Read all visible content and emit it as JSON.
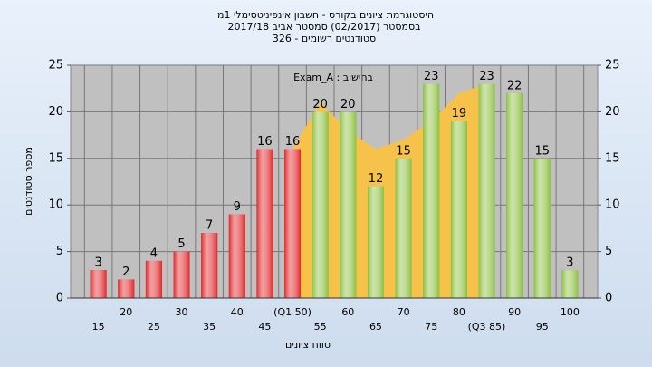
{
  "chart_data": {
    "type": "bar",
    "title": "היסטוגרמת ציונים בקורס - חשבון אינפיניטסימלי 1מ'",
    "subtitle": "בסמסטר (02/2017) סמסטר אביב 2017/18",
    "subtitle2": "סטודנטים רשומים - 326",
    "annotation": "בחישוב : Exam_A",
    "x_label": "טווח ציונים",
    "y_label": "מספר סטודנטים",
    "categories": [
      "15",
      "20",
      "25",
      "30",
      "35",
      "40",
      "45",
      "(Q1 50)",
      "55",
      "60",
      "65",
      "70",
      "75",
      "80",
      "(Q3 85)",
      "90",
      "95",
      "100"
    ],
    "values": [
      3,
      2,
      4,
      5,
      7,
      9,
      16,
      16,
      20,
      20,
      12,
      15,
      23,
      19,
      23,
      22,
      15,
      3
    ],
    "colors": [
      "#e0262a",
      "#e0262a",
      "#e0262a",
      "#e0262a",
      "#e0262a",
      "#e0262a",
      "#e0262a",
      "#e0262a",
      "#8cc040",
      "#8cc040",
      "#8cc040",
      "#8cc040",
      "#8cc040",
      "#8cc040",
      "#8cc040",
      "#8cc040",
      "#8cc040",
      "#8cc040"
    ],
    "area": {
      "color": "#f7c24a",
      "values": [
        null,
        null,
        null,
        null,
        null,
        null,
        null,
        16,
        21,
        18,
        16,
        17,
        19,
        22,
        23,
        null,
        null,
        null
      ]
    },
    "ylim": [
      0,
      25
    ],
    "yticks": [
      0,
      5,
      10,
      15,
      20,
      25
    ],
    "y2lim": [
      0,
      25
    ],
    "y2ticks": [
      0,
      5,
      10,
      15,
      20,
      25
    ],
    "grid": true
  }
}
